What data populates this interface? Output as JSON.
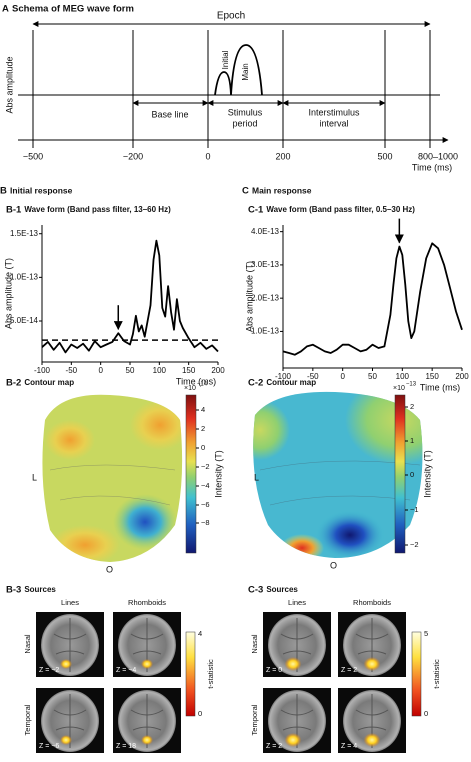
{
  "panel_a": {
    "letter": "A",
    "title": "Schema of MEG wave form",
    "epoch": "Epoch",
    "y_label": "Abs amplitude",
    "initial": "Initial",
    "main": "Main",
    "base_line": "Base line",
    "stimulus_period": [
      "Stimulus",
      "period"
    ],
    "interstimulus_interval": [
      "Interstimulus",
      "interval"
    ],
    "ticks": [
      "−500",
      "−200",
      "0",
      "200",
      "500",
      "800–1000"
    ],
    "x_label": "Time (ms)"
  },
  "panel_b": {
    "letter": "B",
    "title": "Initial response",
    "wave_heading": "B-1",
    "wave_title": "Wave form (Band pass filter, 13–60 Hz)",
    "contour_heading": "B-2",
    "contour_title": "Contour map",
    "contour": {
      "scale_base": "×10",
      "scale_exponent": "−14",
      "colorbar_label": "Intensity (T)",
      "left": "L",
      "occipital": "O",
      "colorbar_ticks": [
        "4",
        "2",
        "0",
        "−2",
        "−4",
        "−6",
        "−8"
      ]
    },
    "sources_heading": "B-3",
    "sources_title": "Sources",
    "sources": {
      "columns": [
        "Lines",
        "Rhomboids"
      ],
      "rows": [
        "Nasal",
        "Temporal"
      ],
      "slices": [
        "Z = −2",
        "Z = −4",
        "Z = −6",
        "Z = 18"
      ],
      "colorbar_label": "t-statistic",
      "colorbar_ticks": [
        "4",
        "0"
      ]
    }
  },
  "panel_c": {
    "letter": "C",
    "title": "Main response",
    "wave_heading": "C-1",
    "wave_title": "Wave form (Band pass filter, 0.5–30 Hz)",
    "contour_heading": "C-2",
    "contour_title": "Contour map",
    "contour": {
      "scale_base": "×10",
      "scale_exponent": "−13",
      "colorbar_label": "Intensity (T)",
      "left": "L",
      "occipital": "O",
      "colorbar_ticks": [
        "2",
        "1",
        "0",
        "−1",
        "−2"
      ]
    },
    "sources_heading": "C-3",
    "sources_title": "Sources",
    "sources": {
      "columns": [
        "Lines",
        "Rhomboids"
      ],
      "rows": [
        "Nasal",
        "Temporal"
      ],
      "slices": [
        "Z = 0",
        "Z = 2",
        "Z = 2",
        "Z = 4"
      ],
      "colorbar_label": "t-statistic",
      "colorbar_ticks": [
        "5",
        "0"
      ]
    }
  },
  "chart_data": [
    {
      "type": "line",
      "y_label": "Abs amplitude (T)",
      "x_label": "Time (ms)",
      "color": "#000000",
      "x": [
        -100,
        -90,
        -80,
        -70,
        -60,
        -50,
        -40,
        -30,
        -20,
        -10,
        0,
        10,
        20,
        30,
        40,
        50,
        55,
        60,
        65,
        70,
        75,
        80,
        85,
        90,
        95,
        100,
        105,
        110,
        115,
        120,
        125,
        130,
        135,
        140,
        150,
        160,
        170,
        180,
        190,
        200
      ],
      "values": [
        2e-14,
        2.6e-14,
        1.7e-14,
        2.5e-14,
        1.4e-14,
        2.3e-14,
        1.9e-14,
        2.4e-14,
        1.6e-14,
        2.7e-14,
        2e-14,
        2.3e-14,
        2.6e-14,
        3.6e-14,
        2.7e-14,
        2.3e-14,
        3.5e-14,
        5.6e-14,
        3.8e-14,
        4.5e-14,
        3.2e-14,
        5e-14,
        6.8e-14,
        1.2e-13,
        1.42e-13,
        1.25e-13,
        6.5e-14,
        5.5e-14,
        9e-14,
        6e-14,
        4e-14,
        7.5e-14,
        5e-14,
        4.2e-14,
        3e-14,
        2e-14,
        2.5e-14,
        1.8e-14,
        2.2e-14,
        1.5e-14
      ],
      "xlim": [
        -100,
        200
      ],
      "xticks": [
        -100,
        -50,
        0,
        50,
        100,
        150,
        200
      ],
      "ylim": [
        3e-15,
        1.6e-13
      ],
      "yticks": [
        {
          "value": 5e-14,
          "label": "5.0E-14"
        },
        {
          "value": 1e-13,
          "label": "1.0E-13"
        },
        {
          "value": 1.5e-13,
          "label": "1.5E-13"
        }
      ],
      "threshold": 2.8e-14,
      "arrow_at": 30
    },
    {
      "type": "line",
      "y_label": "Abs amplitude (T)",
      "x_label": "Time (ms)",
      "color": "#000000",
      "x": [
        -100,
        -90,
        -80,
        -70,
        -60,
        -50,
        -40,
        -30,
        -20,
        -10,
        0,
        10,
        20,
        30,
        40,
        50,
        60,
        70,
        80,
        85,
        90,
        95,
        100,
        105,
        110,
        115,
        120,
        130,
        140,
        150,
        160,
        170,
        180,
        190,
        200
      ],
      "values": [
        4e-14,
        3.5e-14,
        3e-14,
        4e-14,
        5.5e-14,
        6e-14,
        5e-14,
        4e-14,
        3.5e-14,
        4.5e-14,
        6e-14,
        6e-14,
        5e-14,
        4e-14,
        4.5e-14,
        6e-14,
        5e-14,
        5.5e-14,
        1.5e-13,
        2.4e-13,
        3.2e-13,
        3.55e-13,
        3.3e-13,
        2.4e-13,
        1.3e-13,
        8e-14,
        1e-13,
        2.2e-13,
        3.2e-13,
        3.65e-13,
        3.5e-13,
        3e-13,
        2.3e-13,
        1.6e-13,
        1.05e-13
      ],
      "xlim": [
        -100,
        200
      ],
      "xticks": [
        -100,
        -50,
        0,
        50,
        100,
        150,
        200
      ],
      "ylim": [
        -1e-14,
        4.2e-13
      ],
      "yticks": [
        {
          "value": 1e-13,
          "label": "1.0E-13"
        },
        {
          "value": 2e-13,
          "label": "2.0E-13"
        },
        {
          "value": 3e-13,
          "label": "3.0E-13"
        },
        {
          "value": 4e-13,
          "label": "4.0E-13"
        }
      ],
      "arrow_at": 95
    }
  ]
}
